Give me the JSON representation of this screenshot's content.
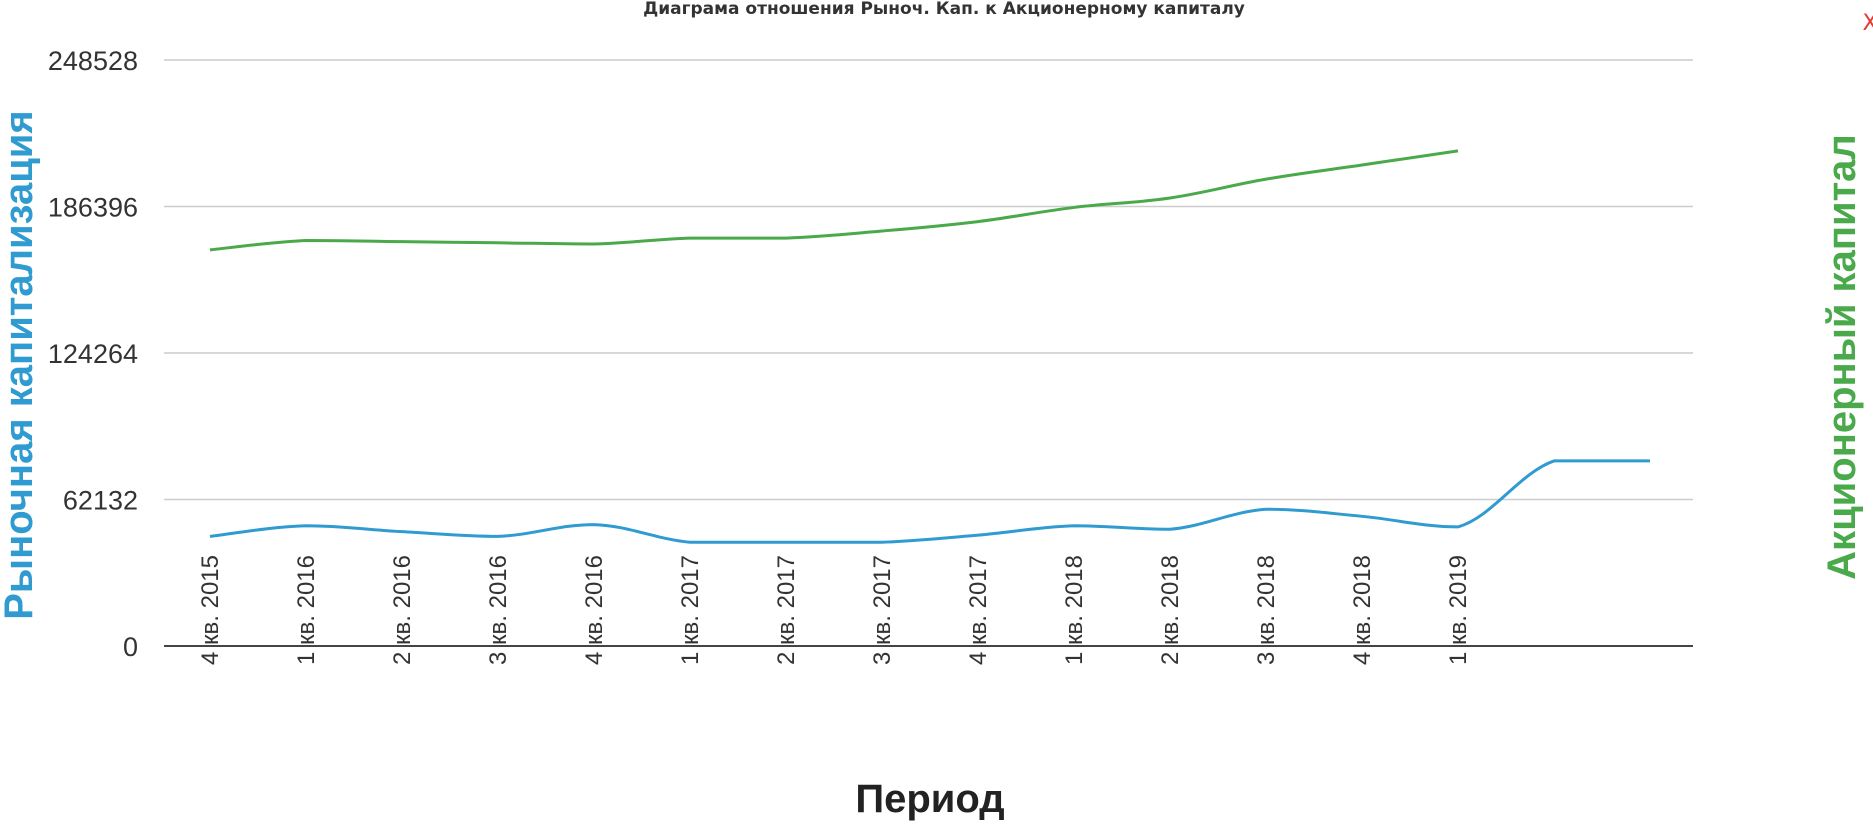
{
  "chart_data": {
    "type": "line",
    "title": "Диаграма отношения Рыноч. Кап. к Акционерному капиталу",
    "xlabel": "Период",
    "ylabel_left": "Рыночная капитализация",
    "ylabel_right": "Акционерный капитал",
    "ylim": [
      0,
      248528
    ],
    "yticks": [
      "0",
      "62132",
      "124264",
      "186396",
      "248528"
    ],
    "grid": true,
    "categories": [
      "4 кв. 2015",
      "1 кв. 2016",
      "2 кв. 2016",
      "3 кв. 2016",
      "4 кв. 2016",
      "1 кв. 2017",
      "2 кв. 2017",
      "3 кв. 2017",
      "4 кв. 2017",
      "1 кв. 2018",
      "2 кв. 2018",
      "3 кв. 2018",
      "4 кв. 2018",
      "1 кв. 2019",
      "",
      ""
    ],
    "series": [
      {
        "color": "#4aa94a",
        "values": [
          168000,
          172000,
          171500,
          171000,
          170500,
          173000,
          173000,
          176000,
          180000,
          186000,
          190000,
          198000,
          204000,
          210000,
          null,
          null
        ]
      },
      {
        "color": "#2f9bd0",
        "values": [
          46500,
          51000,
          48500,
          46500,
          51500,
          44000,
          44000,
          44000,
          47000,
          51000,
          49500,
          58000,
          55000,
          50500,
          78500,
          78500
        ]
      }
    ]
  },
  "close_label": "X"
}
